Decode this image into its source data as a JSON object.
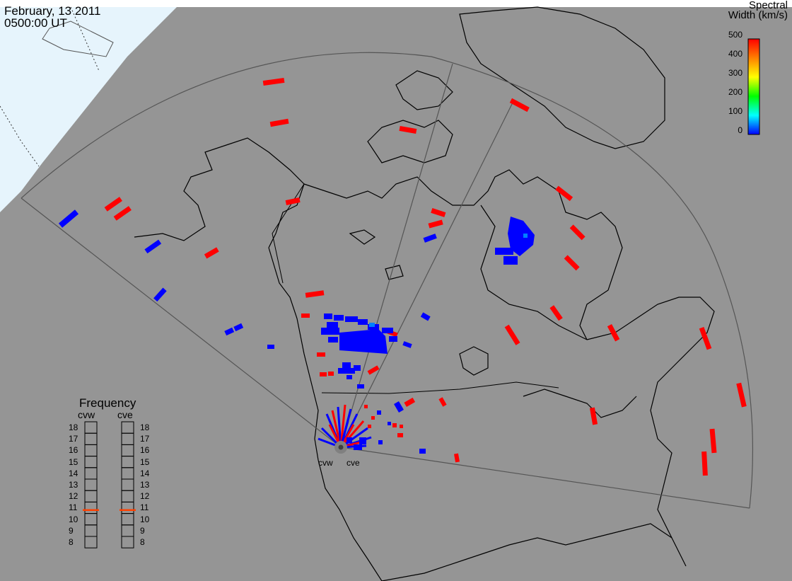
{
  "header": {
    "date": "February, 13 2011",
    "time": "0500:00 UT"
  },
  "colorbar": {
    "title_line1": "Spectral",
    "title_line2": "Width (km/s)",
    "ticks": [
      "500",
      "400",
      "300",
      "200",
      "100",
      "0"
    ],
    "gradient": [
      "#ff0000",
      "#ff8000",
      "#ffff00",
      "#00ff00",
      "#00ffff",
      "#0000ff"
    ]
  },
  "radars": [
    {
      "code": "cvw"
    },
    {
      "code": "cve"
    }
  ],
  "frequency": {
    "title": "Frequency",
    "left_label": "cvw",
    "right_label": "cve",
    "levels": [
      "18",
      "17",
      "16",
      "15",
      "14",
      "13",
      "12",
      "11",
      "10",
      "9",
      "8"
    ],
    "cvw_mhz": 10.8,
    "cve_mhz": 10.8,
    "marker_color": "#ff4000"
  },
  "map_colors": {
    "land_background": "#959595",
    "daylight_region": "#e6f4fc",
    "high_width": "#ff0000",
    "low_width": "#0000ff"
  }
}
